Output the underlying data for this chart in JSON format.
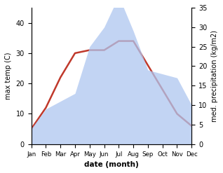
{
  "months": [
    "Jan",
    "Feb",
    "Mar",
    "Apr",
    "May",
    "Jun",
    "Jul",
    "Aug",
    "Sep",
    "Oct",
    "Nov",
    "Dec"
  ],
  "temperature": [
    5,
    12,
    22,
    30,
    31,
    31,
    34,
    34,
    26,
    18,
    10,
    6
  ],
  "precipitation": [
    4,
    9,
    11,
    13,
    25,
    30,
    38,
    29,
    19,
    18,
    17,
    10
  ],
  "temp_color": "#c0392b",
  "precip_color": "#aec6f0",
  "xlabel": "date (month)",
  "ylabel_left": "max temp (C)",
  "ylabel_right": "med. precipitation (kg/m2)",
  "ylim_left": [
    0,
    45
  ],
  "ylim_right": [
    0,
    35
  ],
  "yticks_left": [
    0,
    10,
    20,
    30,
    40
  ],
  "yticks_right": [
    0,
    5,
    10,
    15,
    20,
    25,
    30,
    35
  ]
}
